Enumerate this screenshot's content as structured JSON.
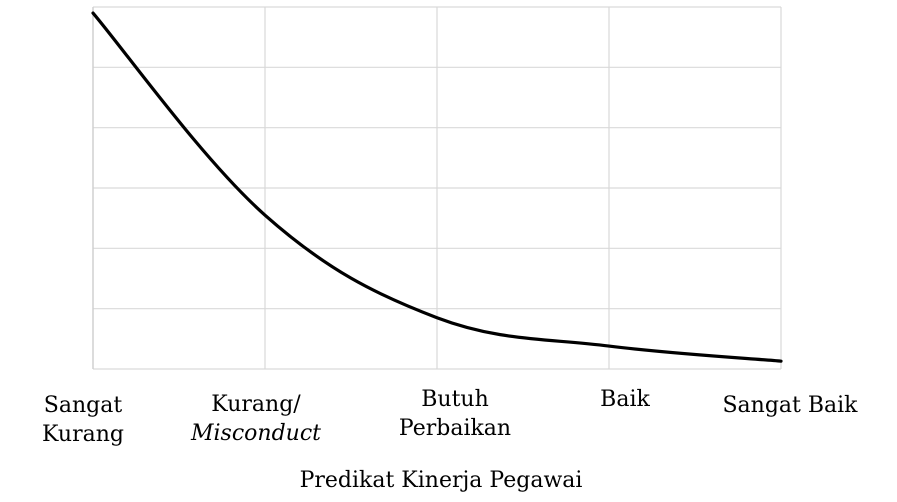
{
  "chart_data": {
    "type": "line",
    "title": "",
    "xlabel": "Predikat Kinerja Pegawai",
    "ylabel": "",
    "categories": [
      "Sangat Kurang",
      "Kurang/ Misconduct",
      "Butuh Perbaikan",
      "Baik",
      "Sangat Baik"
    ],
    "category_label_lines": [
      [
        {
          "text": "Sangat"
        },
        {
          "text": "Kurang"
        }
      ],
      [
        {
          "text": "Kurang/"
        },
        {
          "text": "Misconduct",
          "italic": true
        }
      ],
      [
        {
          "text": "Butuh"
        },
        {
          "text": "Perbaikan"
        }
      ],
      [
        {
          "text": "Baik"
        }
      ],
      [
        {
          "text": "Sangat Baik"
        }
      ]
    ],
    "ylim": [
      0,
      6
    ],
    "y_gridlines": [
      0,
      1,
      2,
      3,
      4,
      5,
      6
    ],
    "y_tick_labels_shown": false,
    "grid": true,
    "series": [
      {
        "values": [
          5.9,
          2.55,
          0.85,
          0.38,
          0.13
        ],
        "color": "#000000"
      }
    ]
  }
}
